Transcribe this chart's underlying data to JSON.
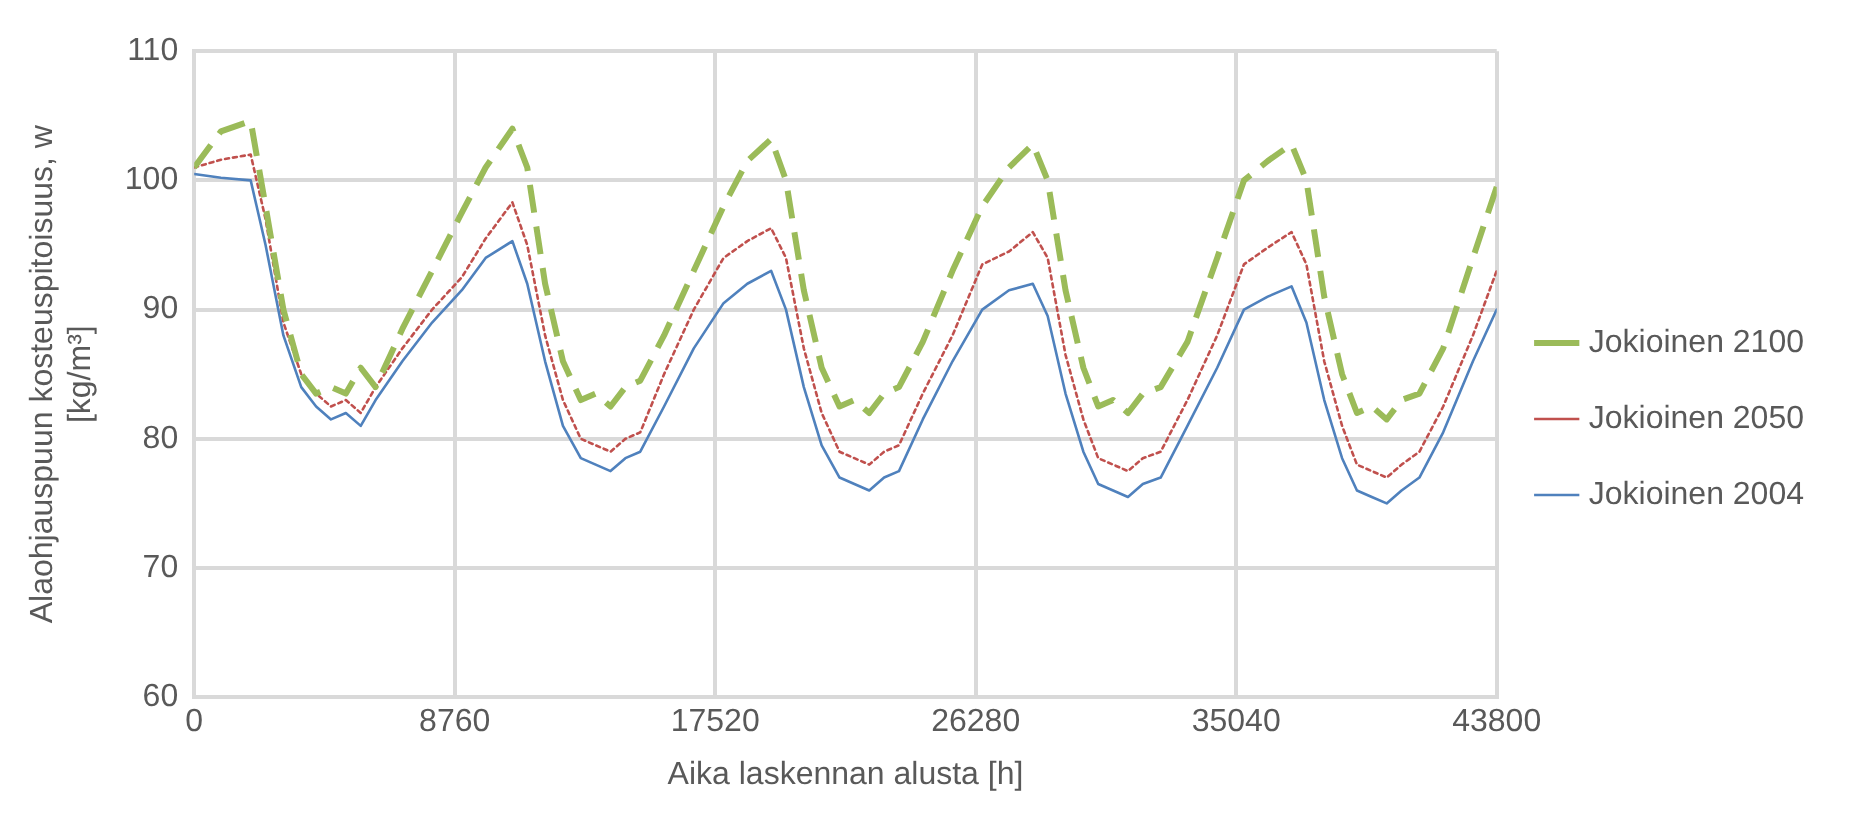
{
  "chart_data": {
    "type": "line",
    "xlabel": "Aika laskennan alusta [h]",
    "ylabel": "Alaohjauspuun kosteuspitoisuus, w [kg/m³]",
    "x": [
      0,
      900,
      1900,
      2400,
      3000,
      3600,
      4100,
      4600,
      5100,
      5600,
      6100,
      7000,
      8000,
      9000,
      9800,
      10700,
      11200,
      11800,
      12400,
      13000,
      13500,
      14000,
      14500,
      15000,
      15800,
      16800,
      17800,
      18600,
      19400,
      19900,
      20500,
      21100,
      21700,
      22200,
      22700,
      23200,
      23700,
      24500,
      25500,
      26500,
      27400,
      28200,
      28700,
      29300,
      29900,
      30400,
      30900,
      31400,
      31900,
      32500,
      33400,
      34400,
      35300,
      36100,
      36900,
      37400,
      38000,
      38600,
      39100,
      39600,
      40100,
      40600,
      41200,
      42000,
      43000,
      43800
    ],
    "series": [
      {
        "name": "Jokioinen 2100",
        "color": "#9bbb59",
        "line_style": "dashed",
        "values": [
          101,
          103.8,
          104.6,
          98,
          90,
          85,
          83.5,
          84,
          83.5,
          85.5,
          84,
          88.5,
          93,
          97.5,
          101,
          104,
          101,
          92,
          86,
          83,
          83.5,
          82.5,
          84,
          84.5,
          88,
          93,
          98,
          101.5,
          103.2,
          100,
          91.5,
          85.5,
          82.5,
          83,
          82,
          83.5,
          84,
          87.5,
          93,
          98,
          101,
          102.8,
          100,
          91.5,
          85.5,
          82.5,
          83,
          82,
          83.5,
          84,
          87.5,
          94,
          100,
          101.5,
          102.8,
          100,
          91,
          85,
          82,
          82.5,
          81.5,
          83,
          83.5,
          87,
          94,
          99.5
        ]
      },
      {
        "name": "Jokioinen 2050",
        "color": "#c0504d",
        "line_style": "dotted",
        "values": [
          101,
          101.6,
          102,
          97,
          89,
          85,
          83.5,
          82.5,
          83,
          82,
          84,
          87,
          90,
          92.5,
          95.5,
          98.3,
          95,
          88,
          83,
          80,
          79.5,
          79,
          80,
          80.5,
          85,
          90,
          94,
          95.3,
          96.3,
          94,
          87,
          82,
          79,
          78.5,
          78,
          79,
          79.5,
          83.5,
          88,
          93.5,
          94.5,
          96,
          94,
          86.5,
          81.5,
          78.5,
          78,
          77.5,
          78.5,
          79,
          83,
          88,
          93.5,
          94.8,
          96,
          93.5,
          86,
          81,
          78,
          77.5,
          77,
          78,
          79,
          82.5,
          88,
          93
        ]
      },
      {
        "name": "Jokioinen 2004",
        "color": "#4f81bd",
        "line_style": "solid",
        "values": [
          100.5,
          100.2,
          100,
          95,
          88,
          84,
          82.5,
          81.5,
          82,
          81,
          83,
          86,
          89,
          91.5,
          94,
          95.3,
          92,
          86,
          81,
          78.5,
          78,
          77.5,
          78.5,
          79,
          82.5,
          87,
          90.5,
          92,
          93,
          90,
          84,
          79.5,
          77,
          76.5,
          76,
          77,
          77.5,
          81.5,
          86,
          90,
          91.5,
          92,
          89.5,
          83.5,
          79,
          76.5,
          76,
          75.5,
          76.5,
          77,
          81,
          85.5,
          90,
          91,
          91.8,
          89,
          83,
          78.5,
          76,
          75.5,
          75,
          76,
          77,
          80.5,
          86,
          90
        ]
      }
    ],
    "xlim": [
      0,
      43800
    ],
    "xticks": [
      0,
      8760,
      17520,
      26280,
      35040,
      43800
    ],
    "ylim": [
      60,
      110
    ],
    "yticks": [
      60,
      70,
      80,
      90,
      100,
      110
    ],
    "grid": true,
    "legend": "right",
    "marker": "none"
  }
}
